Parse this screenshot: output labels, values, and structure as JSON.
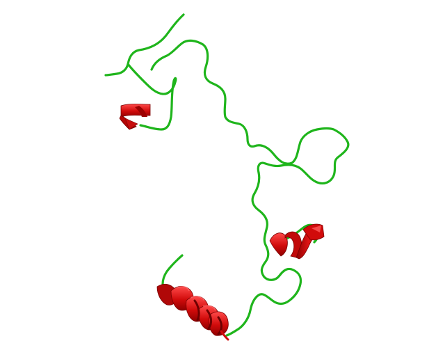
{
  "scene": {
    "background": "#ffffff",
    "coil_color": "#22c41f",
    "helix_color": "#d10b0b",
    "helix_dark": "#8f0000",
    "helix_highlight": "#ff4a4a",
    "segments": [
      {
        "kind": "coil",
        "label": ""
      },
      {
        "kind": "helix",
        "label": ""
      },
      {
        "kind": "coil",
        "label": ""
      },
      {
        "kind": "helix",
        "label": ""
      },
      {
        "kind": "coil",
        "label": ""
      },
      {
        "kind": "helix",
        "label": ""
      },
      {
        "kind": "coil",
        "label": ""
      }
    ]
  }
}
